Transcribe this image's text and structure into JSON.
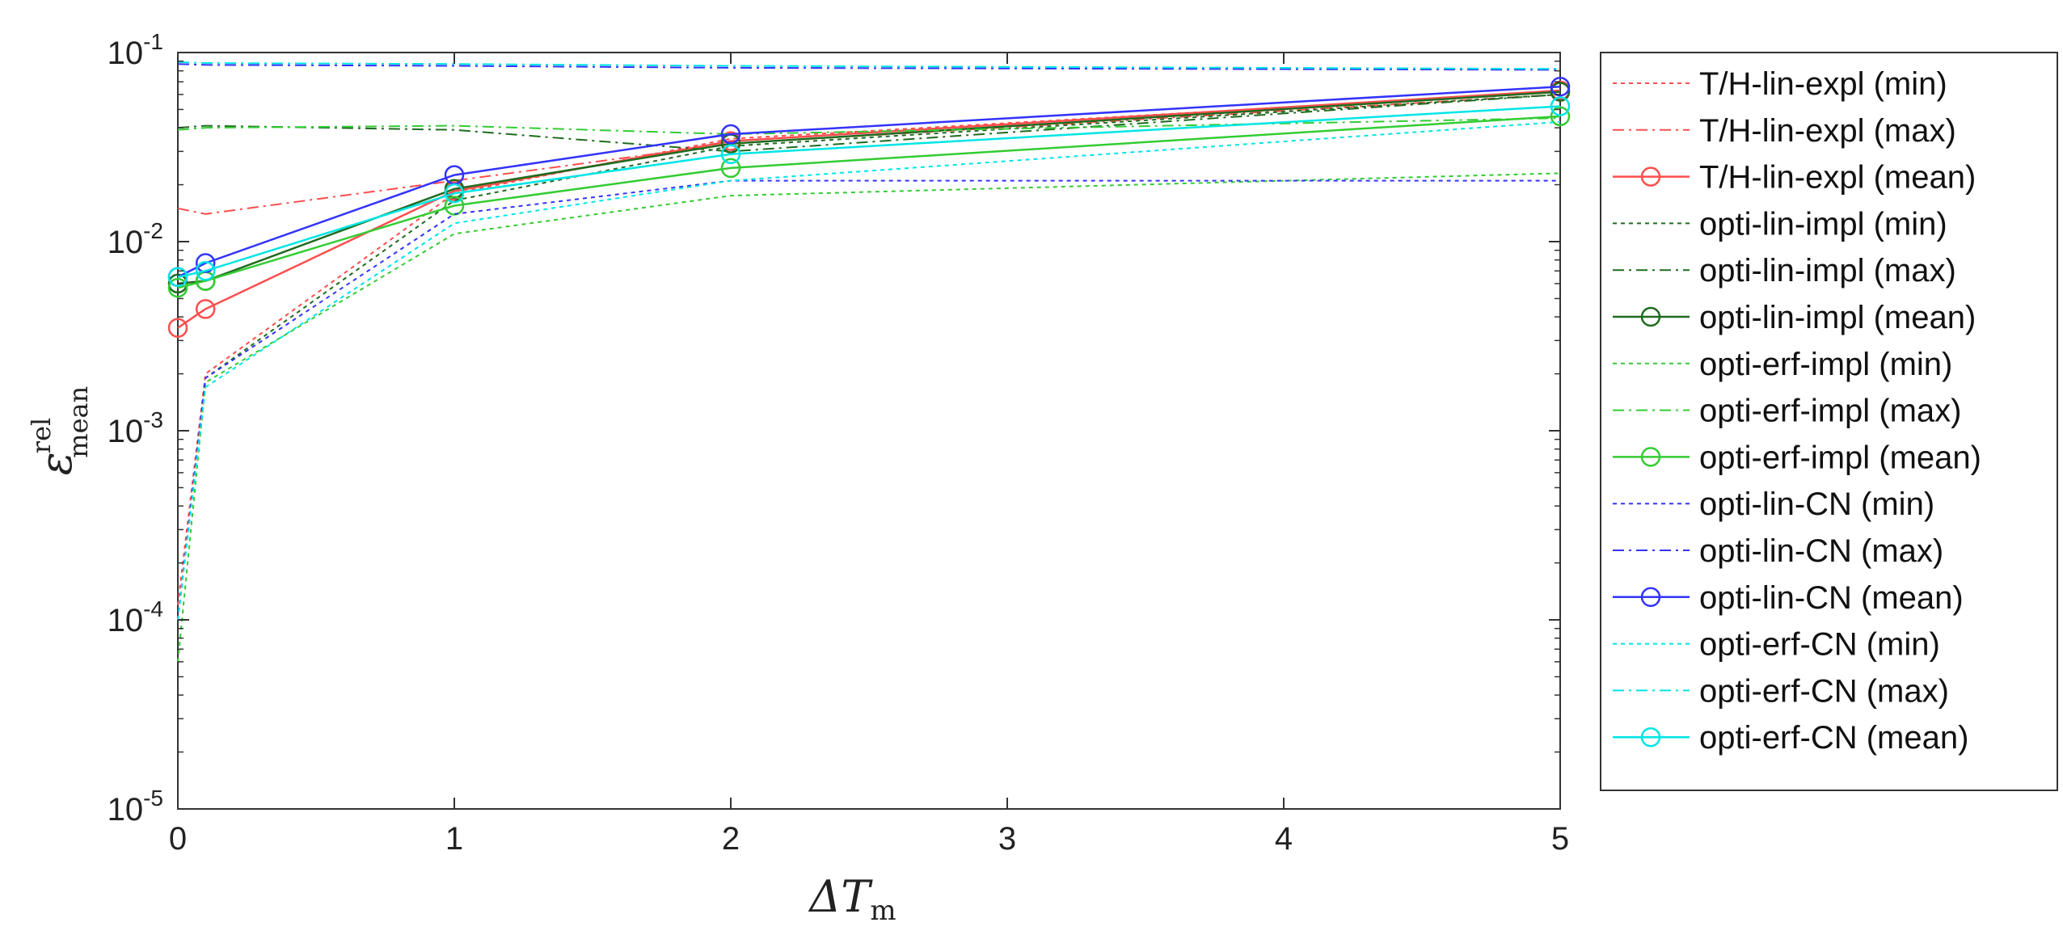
{
  "chart_data": {
    "type": "line",
    "xlabel": "ΔT",
    "xlabel_sub": "m",
    "ylabel": "ε",
    "ylabel_sup": "rel",
    "ylabel_sub": "mean",
    "xlim": [
      0,
      5
    ],
    "ylim": [
      1e-05,
      0.1
    ],
    "yscale": "log",
    "x_ticks": [
      0,
      1,
      2,
      3,
      4,
      5
    ],
    "y_ticks": [
      {
        "value": 1e-05,
        "base": "10",
        "exp": "-5"
      },
      {
        "value": 0.0001,
        "base": "10",
        "exp": "-4"
      },
      {
        "value": 0.001,
        "base": "10",
        "exp": "-3"
      },
      {
        "value": 0.01,
        "base": "10",
        "exp": "-2"
      },
      {
        "value": 0.1,
        "base": "10",
        "exp": "-1"
      }
    ],
    "grid": false,
    "legend_position": "right-outside",
    "x": [
      0,
      0.1,
      1,
      2,
      5
    ],
    "series": [
      {
        "name": "T/H-lin-expl (min)",
        "color": "#ff4d4d",
        "style": "dotted",
        "marker": "none",
        "values": [
          0.00012,
          0.002,
          0.018,
          0.035,
          0.062
        ]
      },
      {
        "name": "T/H-lin-expl (max)",
        "color": "#ff4d4d",
        "style": "dashdot",
        "marker": "none",
        "values": [
          0.015,
          0.014,
          0.021,
          0.033,
          0.06
        ]
      },
      {
        "name": "T/H-lin-expl (mean)",
        "color": "#ff4d4d",
        "style": "solid",
        "marker": "circle",
        "values": [
          0.0035,
          0.0044,
          0.0185,
          0.034,
          0.063
        ]
      },
      {
        "name": "opti-lin-impl (min)",
        "color": "#1f6b1f",
        "style": "dotted",
        "marker": "none",
        "values": [
          0.0001,
          0.0019,
          0.0165,
          0.032,
          0.06
        ]
      },
      {
        "name": "opti-lin-impl (max)",
        "color": "#1f6b1f",
        "style": "dashdot",
        "marker": "none",
        "values": [
          0.04,
          0.041,
          0.039,
          0.03,
          0.06
        ]
      },
      {
        "name": "opti-lin-impl (mean)",
        "color": "#1f6b1f",
        "style": "solid",
        "marker": "circle",
        "values": [
          0.006,
          0.0062,
          0.019,
          0.033,
          0.062
        ]
      },
      {
        "name": "opti-erf-impl (min)",
        "color": "#33cc33",
        "style": "dotted",
        "marker": "none",
        "values": [
          6e-05,
          0.0018,
          0.011,
          0.0175,
          0.023
        ]
      },
      {
        "name": "opti-erf-impl (max)",
        "color": "#33cc33",
        "style": "dashdot",
        "marker": "none",
        "values": [
          0.039,
          0.04,
          0.041,
          0.037,
          0.045
        ]
      },
      {
        "name": "opti-erf-impl (mean)",
        "color": "#33cc33",
        "style": "solid",
        "marker": "circle",
        "values": [
          0.0057,
          0.0062,
          0.0155,
          0.0245,
          0.046
        ]
      },
      {
        "name": "opti-lin-CN (min)",
        "color": "#3333ff",
        "style": "dotted",
        "marker": "none",
        "values": [
          0.0001,
          0.0019,
          0.014,
          0.021,
          0.021
        ]
      },
      {
        "name": "opti-lin-CN (max)",
        "color": "#3333ff",
        "style": "dashdot",
        "marker": "none",
        "values": [
          0.087,
          0.086,
          0.085,
          0.083,
          0.081
        ]
      },
      {
        "name": "opti-lin-CN (mean)",
        "color": "#3333ff",
        "style": "solid",
        "marker": "circle",
        "values": [
          0.0065,
          0.0077,
          0.0225,
          0.037,
          0.066
        ]
      },
      {
        "name": "opti-erf-CN (min)",
        "color": "#00e5e5",
        "style": "dotted",
        "marker": "none",
        "values": [
          0.0001,
          0.0017,
          0.0125,
          0.021,
          0.043
        ]
      },
      {
        "name": "opti-erf-CN (max)",
        "color": "#00e5e5",
        "style": "dashdot",
        "marker": "none",
        "values": [
          0.089,
          0.088,
          0.087,
          0.085,
          0.082
        ]
      },
      {
        "name": "opti-erf-CN (mean)",
        "color": "#00e5e5",
        "style": "solid",
        "marker": "circle",
        "values": [
          0.0065,
          0.007,
          0.018,
          0.029,
          0.052
        ]
      }
    ]
  }
}
